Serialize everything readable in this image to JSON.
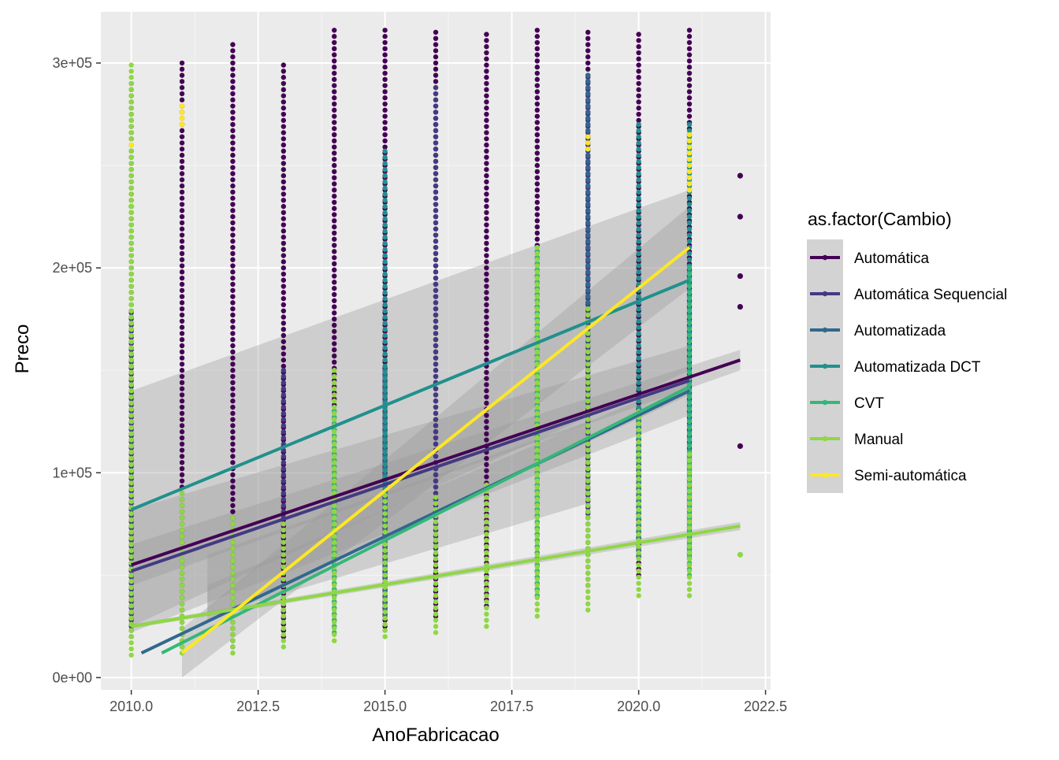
{
  "chart_data": {
    "type": "scatter",
    "xlabel": "AnoFabricacao",
    "ylabel": "Preco",
    "xlim": [
      2009.4,
      2022.6
    ],
    "ylim": [
      -6000,
      325000
    ],
    "x_ticks": [
      2010.0,
      2012.5,
      2015.0,
      2017.5,
      2020.0,
      2022.5
    ],
    "x_tick_labels": [
      "2010.0",
      "2012.5",
      "2015.0",
      "2017.5",
      "2020.0",
      "2022.5"
    ],
    "y_ticks": [
      0,
      100000,
      200000,
      300000
    ],
    "y_tick_labels": [
      "0e+00",
      "1e+05",
      "2e+05",
      "3e+05"
    ],
    "grid": true,
    "panel_background": "#ebebeb",
    "legend": {
      "title": "as.factor(Cambio)",
      "position": "right"
    },
    "series": [
      {
        "name": "Automática",
        "color": "#440154",
        "points": [
          {
            "x": 2010,
            "min": 20000,
            "max": 290000
          },
          {
            "x": 2011,
            "min": 15000,
            "max": 300000
          },
          {
            "x": 2012,
            "min": 15000,
            "max": 310000
          },
          {
            "x": 2013,
            "min": 20000,
            "max": 300000
          },
          {
            "x": 2014,
            "min": 25000,
            "max": 316000
          },
          {
            "x": 2015,
            "min": 25000,
            "max": 316000
          },
          {
            "x": 2016,
            "min": 30000,
            "max": 316000
          },
          {
            "x": 2017,
            "min": 35000,
            "max": 316000
          },
          {
            "x": 2018,
            "min": 40000,
            "max": 316000
          },
          {
            "x": 2019,
            "min": 45000,
            "max": 316000
          },
          {
            "x": 2020,
            "min": 50000,
            "max": 316000
          },
          {
            "x": 2021,
            "min": 55000,
            "max": 316000
          }
        ],
        "extra_points": [
          [
            2022,
            245000
          ],
          [
            2022,
            225000
          ],
          [
            2022,
            196000
          ],
          [
            2022,
            181000
          ],
          [
            2022,
            113000
          ]
        ],
        "trend": {
          "x": [
            2010,
            2022
          ],
          "y": [
            55000,
            155000
          ]
        },
        "band": {
          "x": [
            2010,
            2022
          ],
          "lower": [
            45000,
            150000
          ],
          "upper": [
            65000,
            160000
          ]
        }
      },
      {
        "name": "Automática Sequencial",
        "color": "#443a83",
        "points": [
          {
            "x": 2010,
            "min": 25000,
            "max": 180000
          },
          {
            "x": 2013,
            "min": 30000,
            "max": 150000
          },
          {
            "x": 2016,
            "min": 60000,
            "max": 290000
          },
          {
            "x": 2019,
            "min": 80000,
            "max": 295000
          }
        ],
        "trend": {
          "x": [
            2010,
            2021
          ],
          "y": [
            52000,
            145000
          ]
        },
        "band": {
          "x": [
            2010,
            2021
          ],
          "lower": [
            22000,
            128000
          ],
          "upper": [
            82000,
            162000
          ]
        }
      },
      {
        "name": "Automatizada",
        "color": "#31688e",
        "points": [
          {
            "x": 2015,
            "min": 30000,
            "max": 150000
          },
          {
            "x": 2019,
            "min": 60000,
            "max": 296000
          }
        ],
        "trend": {
          "x": [
            2010.2,
            2021
          ],
          "y": [
            12000,
            140000
          ]
        },
        "band": {
          "x": [
            2011.5,
            2019
          ],
          "lower": [
            30000,
            85000
          ],
          "upper": [
            60000,
            125000
          ]
        }
      },
      {
        "name": "Automatizada DCT",
        "color": "#21908d",
        "points": [
          {
            "x": 2015,
            "min": 50000,
            "max": 257000
          },
          {
            "x": 2020,
            "min": 60000,
            "max": 270000
          },
          {
            "x": 2021,
            "min": 60000,
            "max": 270000
          }
        ],
        "trend": {
          "x": [
            2010,
            2021
          ],
          "y": [
            82000,
            194000
          ]
        },
        "band": {
          "x": [
            2010,
            2021
          ],
          "lower": [
            25000,
            150000
          ],
          "upper": [
            140000,
            238000
          ]
        }
      },
      {
        "name": "CVT",
        "color": "#35b779",
        "points": [
          {
            "x": 2014,
            "min": 22000,
            "max": 130000
          },
          {
            "x": 2018,
            "min": 40000,
            "max": 210000
          },
          {
            "x": 2021,
            "min": 50000,
            "max": 200000
          }
        ],
        "trend": {
          "x": [
            2010.6,
            2021
          ],
          "y": [
            12000,
            142000
          ]
        },
        "band": {
          "x": [
            2011.5,
            2021
          ],
          "lower": [
            28000,
            138000
          ],
          "upper": [
            45000,
            146000
          ]
        }
      },
      {
        "name": "Manual",
        "color": "#8fd744",
        "points": [
          {
            "x": 2010,
            "min": 11000,
            "max": 300000
          },
          {
            "x": 2011,
            "min": 12000,
            "max": 90000
          },
          {
            "x": 2012,
            "min": 12000,
            "max": 80000
          },
          {
            "x": 2013,
            "min": 15000,
            "max": 75000
          },
          {
            "x": 2014,
            "min": 18000,
            "max": 150000
          },
          {
            "x": 2015,
            "min": 20000,
            "max": 90000
          },
          {
            "x": 2016,
            "min": 22000,
            "max": 90000
          },
          {
            "x": 2017,
            "min": 25000,
            "max": 95000
          },
          {
            "x": 2018,
            "min": 30000,
            "max": 210000
          },
          {
            "x": 2019,
            "min": 33000,
            "max": 180000
          },
          {
            "x": 2020,
            "min": 40000,
            "max": 130000
          },
          {
            "x": 2021,
            "min": 40000,
            "max": 110000
          }
        ],
        "extra_points": [
          [
            2022,
            60000
          ],
          [
            2010,
            230000
          ]
        ],
        "trend": {
          "x": [
            2010,
            2022
          ],
          "y": [
            25000,
            74000
          ]
        },
        "band": {
          "x": [
            2010,
            2022
          ],
          "lower": [
            24000,
            72000
          ],
          "upper": [
            26000,
            76000
          ]
        }
      },
      {
        "name": "Semi-automática",
        "color": "#fde725",
        "points": [
          {
            "x": 2010,
            "min": 260000,
            "max": 260000
          },
          {
            "x": 2011,
            "min": 270000,
            "max": 279000
          },
          {
            "x": 2019,
            "min": 258000,
            "max": 265000
          },
          {
            "x": 2021,
            "min": 238000,
            "max": 265000
          }
        ],
        "trend": {
          "x": [
            2011,
            2021
          ],
          "y": [
            12000,
            210000
          ]
        },
        "band": {
          "x": [
            2011,
            2021
          ],
          "lower": [
            0,
            190000
          ],
          "upper": [
            24000,
            230000
          ]
        }
      }
    ]
  }
}
